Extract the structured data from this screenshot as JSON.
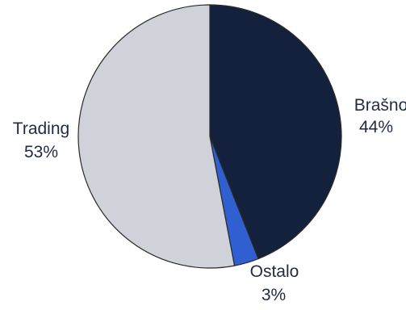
{
  "chart_data": {
    "type": "pie",
    "title": "",
    "slices": [
      {
        "label": "Brašno",
        "value": 44,
        "value_text": "44%",
        "color": "#14213d"
      },
      {
        "label": "Ostalo",
        "value": 3,
        "value_text": "3%",
        "color": "#2f5fd0"
      },
      {
        "label": "Trading",
        "value": 53,
        "value_text": "53%",
        "color": "#cfd2d8"
      }
    ],
    "start": "12 o'clock",
    "direction": "clockwise",
    "legend": "none, labels beside slices"
  }
}
